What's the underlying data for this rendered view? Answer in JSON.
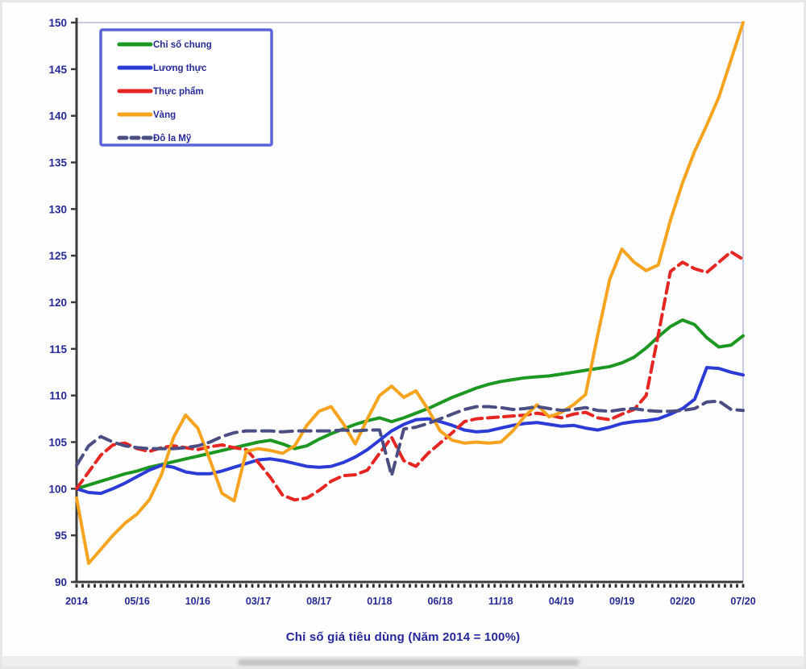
{
  "chart_data": {
    "type": "line",
    "title": "Chỉ số giá tiêu dùng (Năm 2014 = 100%)",
    "xlabel": "",
    "ylabel": "",
    "ylim": [
      90,
      150
    ],
    "y_tick_step": 5,
    "y_tick_labels": [
      "90",
      "95",
      "100",
      "105",
      "110",
      "115",
      "120",
      "125",
      "130",
      "135",
      "140",
      "145",
      "150"
    ],
    "x_tick_labels": [
      "2014",
      "05/16",
      "10/16",
      "03/17",
      "08/17",
      "01/18",
      "06/18",
      "11/18",
      "04/19",
      "09/19",
      "02/20",
      "07/20"
    ],
    "x_label_every": 5,
    "n_points": 56,
    "grid": false,
    "legend_position": "top-left",
    "series": [
      {
        "name": "Chỉ số chung",
        "color": "#1c9722",
        "dash": "",
        "legend_dash": "",
        "values": [
          100.0,
          100.4,
          100.8,
          101.2,
          101.6,
          101.9,
          102.3,
          102.6,
          102.9,
          103.2,
          103.5,
          103.8,
          104.1,
          104.4,
          104.7,
          105.0,
          105.2,
          104.8,
          104.3,
          104.6,
          105.3,
          105.9,
          106.4,
          106.9,
          107.3,
          107.6,
          107.2,
          107.6,
          108.1,
          108.6,
          109.2,
          109.8,
          110.3,
          110.8,
          111.2,
          111.5,
          111.7,
          111.9,
          112.0,
          112.1,
          112.3,
          112.5,
          112.7,
          112.9,
          113.1,
          113.5,
          114.1,
          115.1,
          116.3,
          117.4,
          118.1,
          117.6,
          116.2,
          115.2,
          115.4,
          116.4
        ]
      },
      {
        "name": "Lương thực",
        "color": "#2a3bd6",
        "dash": "",
        "legend_dash": "",
        "values": [
          100.0,
          99.6,
          99.5,
          100.0,
          100.6,
          101.3,
          102.0,
          102.5,
          102.3,
          101.8,
          101.6,
          101.6,
          101.9,
          102.3,
          102.7,
          103.1,
          103.2,
          103.0,
          102.7,
          102.4,
          102.3,
          102.4,
          102.8,
          103.4,
          104.2,
          105.2,
          106.2,
          106.9,
          107.4,
          107.5,
          107.2,
          106.8,
          106.3,
          106.1,
          106.2,
          106.5,
          106.8,
          107.0,
          107.1,
          106.9,
          106.7,
          106.8,
          106.5,
          106.3,
          106.6,
          107.0,
          107.2,
          107.3,
          107.5,
          108.0,
          108.6,
          109.6,
          113.0,
          112.9,
          112.5,
          112.2
        ]
      },
      {
        "name": "Thực phẩm",
        "color": "#e52622",
        "dash": "13,7",
        "legend_dash": "",
        "values": [
          100.0,
          101.8,
          103.6,
          104.7,
          104.9,
          104.3,
          104.0,
          104.4,
          104.6,
          104.4,
          104.2,
          104.5,
          104.7,
          104.4,
          104.2,
          102.8,
          101.2,
          99.3,
          98.8,
          99.0,
          99.8,
          100.8,
          101.4,
          101.5,
          102.0,
          103.8,
          105.5,
          103.0,
          102.4,
          103.8,
          104.9,
          106.0,
          107.2,
          107.5,
          107.6,
          107.7,
          107.8,
          107.9,
          108.1,
          107.9,
          107.6,
          108.0,
          108.2,
          107.6,
          107.4,
          108.0,
          108.5,
          110.0,
          116.5,
          123.3,
          124.3,
          123.6,
          123.2,
          124.3,
          125.4,
          124.6
        ]
      },
      {
        "name": "Vàng",
        "color": "#f6a41f",
        "dash": "",
        "legend_dash": "",
        "values": [
          99.0,
          92.0,
          93.5,
          95.0,
          96.3,
          97.3,
          98.8,
          101.5,
          105.5,
          107.9,
          106.5,
          103.1,
          99.5,
          98.7,
          104.0,
          104.3,
          104.1,
          103.8,
          104.6,
          106.8,
          108.3,
          108.8,
          107.0,
          104.8,
          107.5,
          110.0,
          111.0,
          109.8,
          110.5,
          108.5,
          106.2,
          105.2,
          104.9,
          105.0,
          104.9,
          105.0,
          106.2,
          107.8,
          109.0,
          107.7,
          108.2,
          109.0,
          110.1,
          116.5,
          122.5,
          125.7,
          124.3,
          123.4,
          124.0,
          128.8,
          132.8,
          136.2,
          139.0,
          142.0,
          146.0,
          150.0
        ]
      },
      {
        "name": "Đô la Mỹ",
        "color": "#4b4e82",
        "dash": "15,8",
        "legend_dash": "9,6",
        "values": [
          102.5,
          104.6,
          105.6,
          105.0,
          104.6,
          104.4,
          104.3,
          104.3,
          104.3,
          104.4,
          104.6,
          105.0,
          105.6,
          106.0,
          106.2,
          106.2,
          106.2,
          106.1,
          106.2,
          106.2,
          106.2,
          106.2,
          106.3,
          106.2,
          106.3,
          106.3,
          101.4,
          106.4,
          106.6,
          107.0,
          107.5,
          108.0,
          108.5,
          108.8,
          108.8,
          108.7,
          108.5,
          108.6,
          108.8,
          108.6,
          108.4,
          108.5,
          108.7,
          108.4,
          108.3,
          108.5,
          108.6,
          108.4,
          108.3,
          108.3,
          108.4,
          108.6,
          109.3,
          109.4,
          108.5,
          108.4
        ]
      }
    ],
    "colors": {
      "axis": "#3d3d3d",
      "plot_frame": "#c7c7e6",
      "tick_label": "#252a96",
      "legend_border": "#5a63d8",
      "legend_text": "#1d2276",
      "page_border": "#e7e7e7"
    }
  }
}
